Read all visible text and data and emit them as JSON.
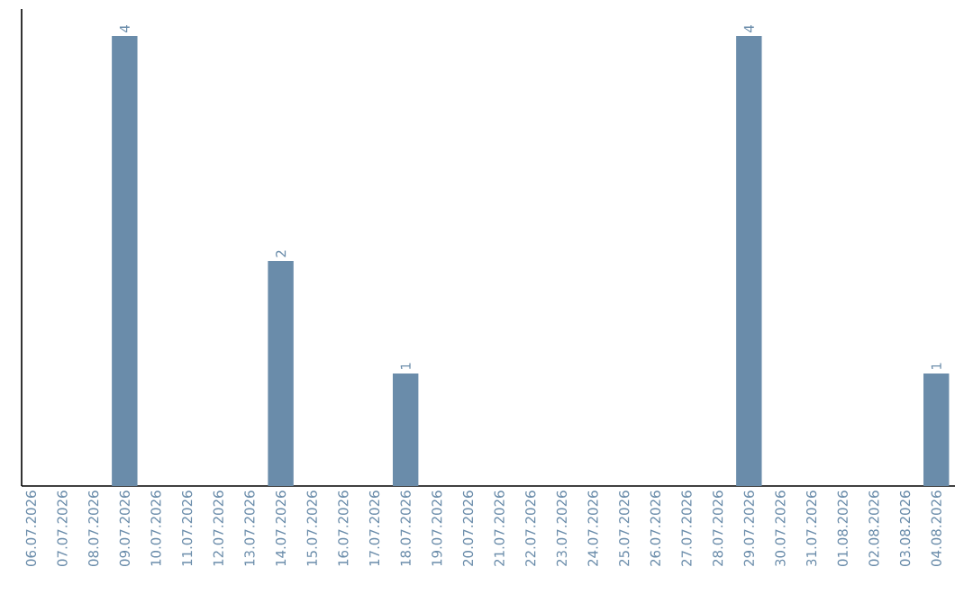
{
  "chart_data": {
    "type": "bar",
    "categories": [
      "06.07.2026",
      "07.07.2026",
      "08.07.2026",
      "09.07.2026",
      "10.07.2026",
      "11.07.2026",
      "12.07.2026",
      "13.07.2026",
      "14.07.2026",
      "15.07.2026",
      "16.07.2026",
      "17.07.2026",
      "18.07.2026",
      "19.07.2026",
      "20.07.2026",
      "21.07.2026",
      "22.07.2026",
      "23.07.2026",
      "24.07.2026",
      "25.07.2026",
      "26.07.2026",
      "27.07.2026",
      "28.07.2026",
      "29.07.2026",
      "30.07.2026",
      "31.07.2026",
      "01.08.2026",
      "02.08.2026",
      "03.08.2026",
      "04.08.2026"
    ],
    "values": [
      0,
      0,
      0,
      4,
      0,
      0,
      0,
      0,
      2,
      0,
      0,
      0,
      1,
      0,
      0,
      0,
      0,
      0,
      0,
      0,
      0,
      0,
      0,
      4,
      0,
      0,
      0,
      0,
      0,
      1
    ],
    "value_labels": [
      null,
      null,
      null,
      "4",
      null,
      null,
      null,
      null,
      "2",
      null,
      null,
      null,
      "1",
      null,
      null,
      null,
      null,
      null,
      null,
      null,
      null,
      null,
      null,
      "4",
      null,
      null,
      null,
      null,
      null,
      "1"
    ],
    "color": "#6a8caa"
  }
}
